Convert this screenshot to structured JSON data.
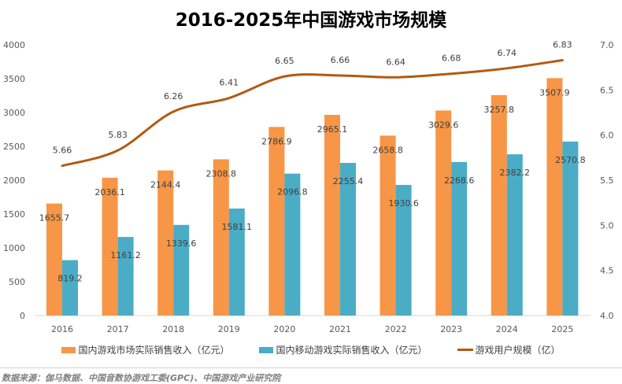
{
  "chart_data": {
    "type": "bar+line",
    "title": "2016-2025年中国游戏市场规模",
    "categories": [
      "2016",
      "2017",
      "2018",
      "2019",
      "2020",
      "2021",
      "2022",
      "2023",
      "2024",
      "2025"
    ],
    "series": [
      {
        "name": "国内游戏市场实际销售收入（亿元）",
        "type": "bar",
        "axis": "left",
        "color": "#F79646",
        "values": [
          1655.7,
          2036.1,
          2144.4,
          2308.8,
          2786.9,
          2965.1,
          2658.8,
          3029.6,
          3257.8,
          3507.9
        ]
      },
      {
        "name": "国内移动游戏实际销售收入（亿元）",
        "type": "bar",
        "axis": "left",
        "color": "#4BACC6",
        "values": [
          819.2,
          1161.2,
          1339.6,
          1581.1,
          2096.8,
          2255.4,
          1930.6,
          2268.6,
          2382.2,
          2570.8
        ]
      },
      {
        "name": "游戏用户规模（亿）",
        "type": "line",
        "axis": "right",
        "color": "#B35A10",
        "smooth": true,
        "values": [
          5.66,
          5.83,
          6.26,
          6.41,
          6.65,
          6.66,
          6.64,
          6.68,
          6.74,
          6.83
        ]
      }
    ],
    "ylim_left": [
      0,
      4000
    ],
    "yticks_left": [
      "0",
      "500",
      "1000",
      "1500",
      "2000",
      "2500",
      "3000",
      "3500",
      "4000"
    ],
    "ylim_right": [
      4.0,
      7.0
    ],
    "yticks_right": [
      "4.0",
      "4.5",
      "5.0",
      "5.5",
      "6.0",
      "6.5",
      "7.0"
    ],
    "grid": false,
    "legend": "bottom"
  },
  "source": "数据来源：伽马数据、中国音数协游戏工委(GPC)、中国游戏产业研究院"
}
